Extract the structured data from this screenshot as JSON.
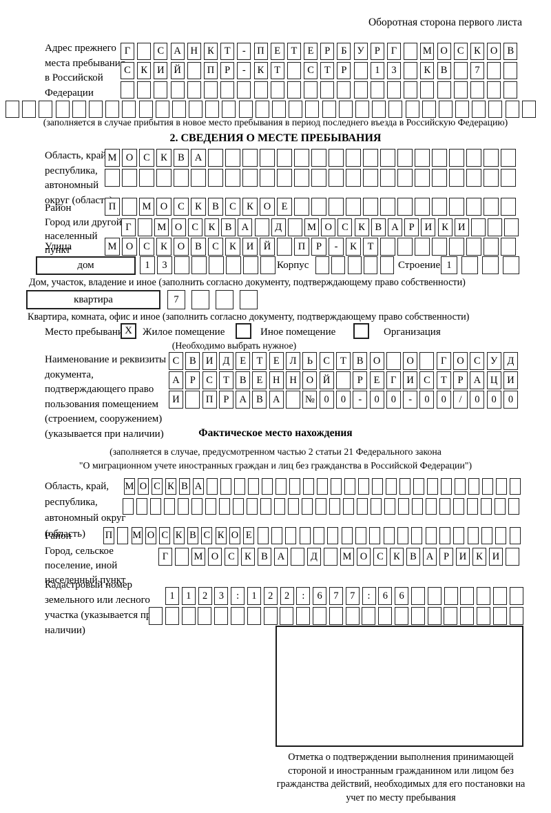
{
  "page_header": "Оборотная сторона первого листа",
  "prev_address": {
    "label": "Адрес прежнего места пребывания в Российской Федерации",
    "rows": [
      {
        "text": "Г САНКТ-ПЕТЕРБУРГ МОСКОВ",
        "len": 24
      },
      {
        "text": "СКИЙ ПР-КТ СТР 13 КВ 7",
        "len": 24
      },
      {
        "text": "",
        "len": 24
      },
      {
        "text": "",
        "len": 32
      }
    ],
    "note": "(заполняется в случае прибытия в новое место пребывания в период последнего въезда в Российскую Федерацию)"
  },
  "section2": {
    "title": "2. СВЕДЕНИЯ О МЕСТЕ ПРЕБЫВАНИЯ",
    "region": {
      "label": "Область, край, республика, автономный округ (область)",
      "rows": [
        {
          "text": "МОСКВА",
          "len": 24
        },
        {
          "text": "",
          "len": 24
        }
      ]
    },
    "district": {
      "label": "Район",
      "row": {
        "text": "П МОСКВСКОЕ",
        "len": 24
      }
    },
    "city": {
      "label": "Город или другой населенный пункт",
      "row": {
        "text": "Г МОСКВА Д МОСКВАРИКИ",
        "len": 24
      }
    },
    "street": {
      "label": "Улица",
      "row": {
        "text": "МОСКОВСКИЙ ПР-КТ",
        "len": 24
      }
    },
    "house": {
      "box_label": "дом",
      "house_row": {
        "text": "13",
        "len": 8
      },
      "korpus_label": "Корпус",
      "korpus_row": {
        "text": "",
        "len": 5
      },
      "stroenie_label": "Строение",
      "stroenie_row": {
        "text": "1",
        "len": 4
      },
      "note": "Дом, участок, владение и иное (заполнить согласно документу, подтверждающему право собственности)"
    },
    "apartment": {
      "box_label": "квартира",
      "row": {
        "text": "7",
        "len": 4
      },
      "note": "Квартира, комната, офис и иное (заполнить согласно документу, подтверждающему право собственности)"
    },
    "stay_type": {
      "label": "Место пребывания:",
      "options": [
        {
          "label": "Жилое помещение",
          "checked": "X"
        },
        {
          "label": "Иное помещение",
          "checked": ""
        },
        {
          "label": "Организация",
          "checked": ""
        }
      ],
      "note": "(Необходимо выбрать нужное)"
    },
    "document": {
      "label": "Наименование и реквизиты документа, подтверждающего право пользования помещением (строением, сооружением) (указывается при наличии)",
      "rows": [
        {
          "text": "СВИДЕТЕЛЬСТВО О ГОСУД",
          "len": 21
        },
        {
          "text": "АРСТВЕННОЙ РЕГИСТРАЦИ",
          "len": 21
        },
        {
          "text": "И ПРАВА №00-00-00/000",
          "len": 21
        }
      ]
    }
  },
  "actual_location": {
    "title": "Фактическое место нахождения",
    "note_line1": "(заполняется в случае, предусмотренном частью 2 статьи 21 Федерального закона",
    "note_line2": "\"О миграционном учете иностранных граждан и лиц без гражданства в Российской Федерации\")",
    "region": {
      "label": "Область, край, республика, автономный округ (область)",
      "rows": [
        {
          "text": "МОСКВА",
          "len": 29
        },
        {
          "text": "",
          "len": 29
        }
      ]
    },
    "district": {
      "label": "Район",
      "row": {
        "text": "П МОСКВСКОЕ",
        "len": 30
      }
    },
    "city": {
      "label": "Город, сельское поселение, иной населенный пункт",
      "row": {
        "text": "Г МОСКВА Д МОСКВАРИКИ",
        "len": 22
      }
    },
    "cadastral": {
      "label": "Кадастровый номер земельного или лесного участка (указывается при наличии)",
      "rows": [
        {
          "text": "1123:122:677:66",
          "len": 22
        },
        {
          "text": "",
          "len": 23
        }
      ]
    },
    "stamp_note": "Отметка о подтверждении выполнения принимающей стороной и иностранным гражданином или лицом без гражданства действий, необходимых для его постановки на учет по месту пребывания"
  }
}
